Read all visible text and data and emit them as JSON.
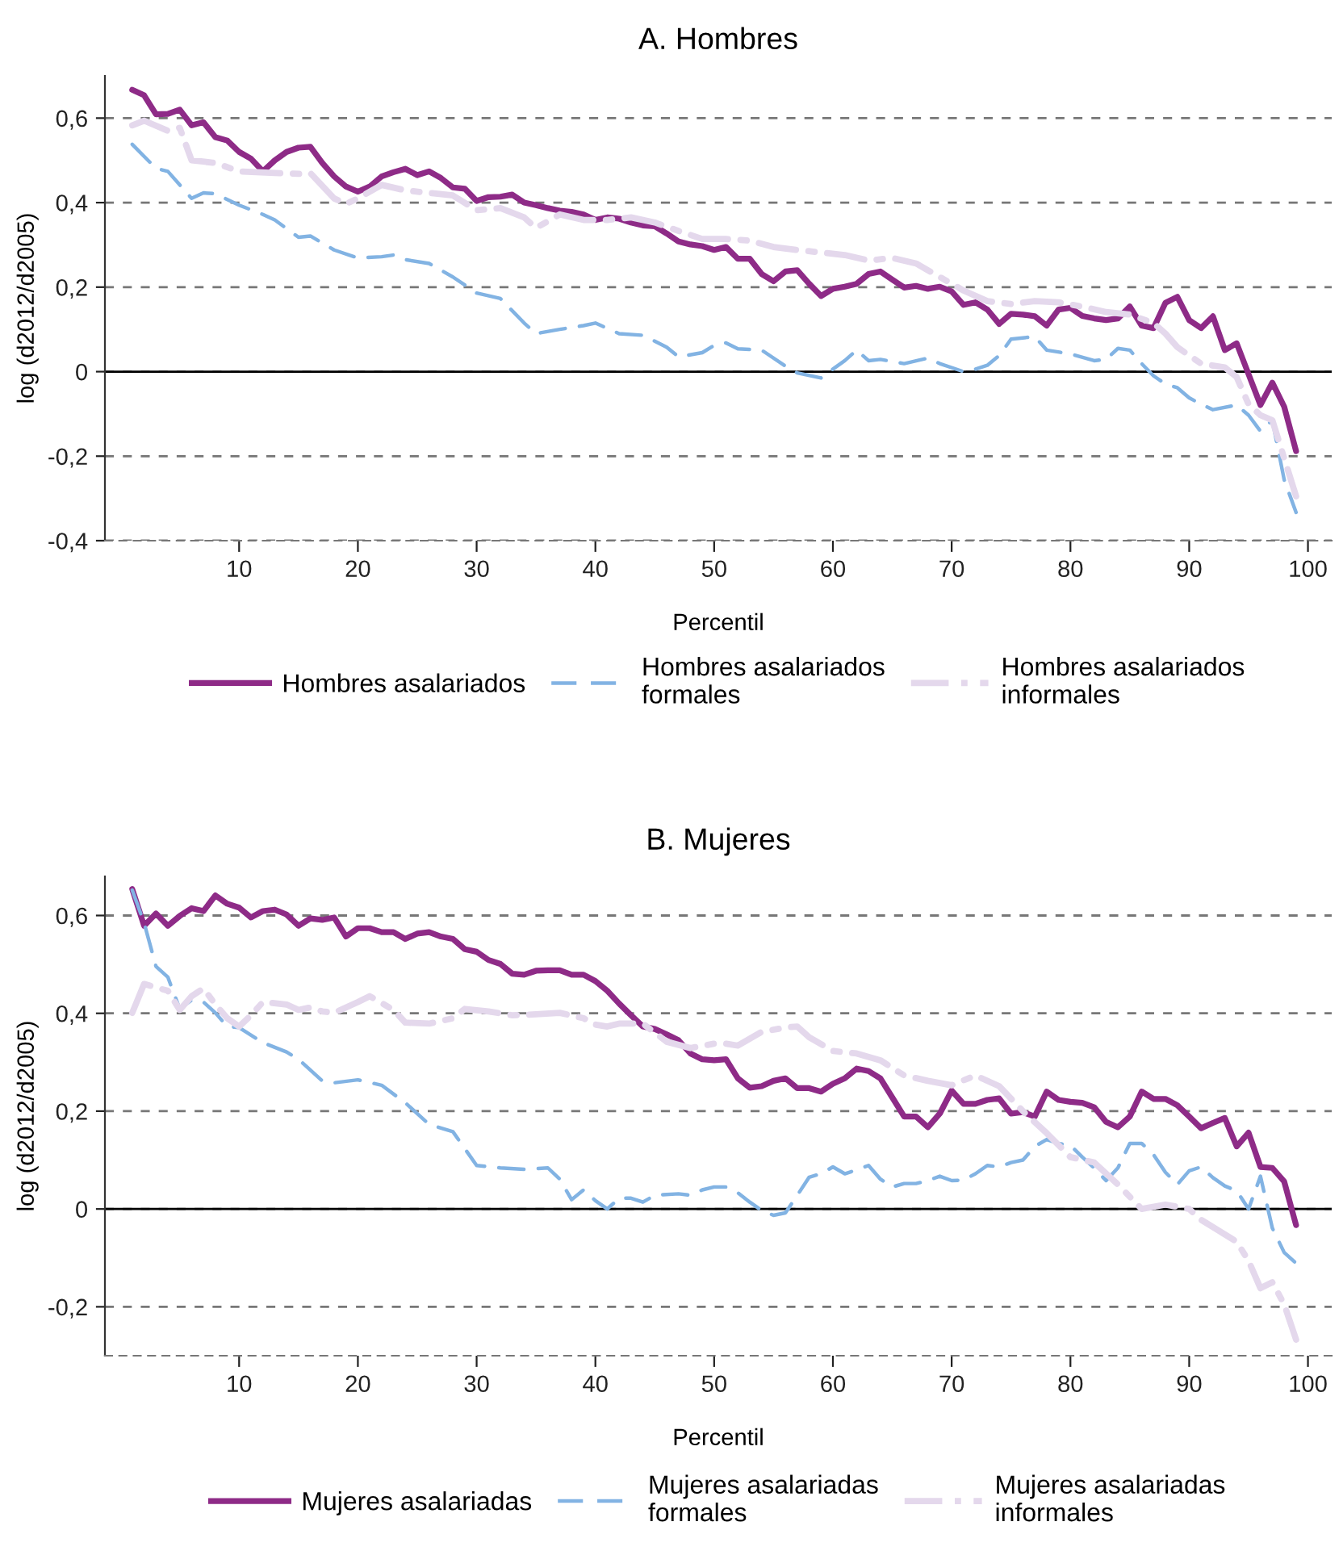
{
  "chart_data": [
    {
      "type": "line",
      "title": "A. Hombres",
      "xlabel": "Percentil",
      "ylabel": "log (d2012/d2005)",
      "xlim": [
        -1.3,
        102
      ],
      "xticks": [
        10,
        20,
        30,
        40,
        50,
        60,
        70,
        80,
        90,
        100
      ],
      "ylim": [
        -0.4,
        0.7
      ],
      "yticks": [
        {
          "value": -0.4,
          "label": "-0,4"
        },
        {
          "value": -0.2,
          "label": "-0,2"
        },
        {
          "value": 0,
          "label": "0"
        },
        {
          "value": 0.2,
          "label": "0,2"
        },
        {
          "value": 0.4,
          "label": "0,4"
        },
        {
          "value": 0.6,
          "label": "0,6"
        }
      ],
      "grid": "y",
      "legend": "bottom",
      "ref_lines": [
        {
          "axis": "y",
          "value": 0,
          "color": "#000000",
          "line_style": "solid"
        }
      ],
      "series": [
        {
          "name": "Hombres asalariados",
          "color": "#8e2b87",
          "line_style": "solid",
          "x": [
            1,
            2,
            3,
            4,
            5,
            6,
            7,
            8,
            9,
            10,
            11,
            12,
            13,
            14,
            15,
            16,
            17,
            18,
            19,
            20,
            21,
            22,
            23,
            24,
            25,
            26,
            27,
            28,
            29,
            30,
            31,
            32,
            33,
            34,
            35,
            36,
            37,
            38,
            39,
            40,
            41,
            42,
            43,
            44,
            45,
            46,
            47,
            48,
            49,
            50,
            51,
            52,
            53,
            54,
            55,
            56,
            57,
            58,
            59,
            60,
            61,
            62,
            63,
            64,
            65,
            66,
            67,
            68,
            69,
            70,
            71,
            72,
            73,
            74,
            75,
            76,
            77,
            78,
            79,
            80,
            81,
            82,
            83,
            84,
            85,
            86,
            87,
            88,
            89,
            90,
            91,
            92,
            93,
            94,
            95,
            96,
            97,
            98,
            99
          ],
          "values": [
            0.667,
            0.654,
            0.609,
            0.61,
            0.62,
            0.583,
            0.59,
            0.555,
            0.547,
            0.52,
            0.504,
            0.474,
            0.5,
            0.52,
            0.53,
            0.532,
            0.494,
            0.462,
            0.438,
            0.426,
            0.438,
            0.462,
            0.472,
            0.48,
            0.465,
            0.474,
            0.458,
            0.436,
            0.433,
            0.404,
            0.413,
            0.414,
            0.419,
            0.4,
            0.394,
            0.387,
            0.381,
            0.378,
            0.372,
            0.359,
            0.365,
            0.362,
            0.353,
            0.346,
            0.344,
            0.327,
            0.308,
            0.301,
            0.297,
            0.288,
            0.295,
            0.267,
            0.267,
            0.231,
            0.214,
            0.237,
            0.24,
            0.208,
            0.179,
            0.196,
            0.201,
            0.208,
            0.231,
            0.237,
            0.218,
            0.199,
            0.203,
            0.196,
            0.201,
            0.19,
            0.158,
            0.164,
            0.147,
            0.113,
            0.137,
            0.135,
            0.131,
            0.109,
            0.147,
            0.151,
            0.132,
            0.126,
            0.122,
            0.126,
            0.154,
            0.109,
            0.103,
            0.163,
            0.177,
            0.122,
            0.103,
            0.131,
            0.051,
            0.067,
            -0.006,
            -0.079,
            -0.026,
            -0.083,
            -0.188
          ]
        },
        {
          "name": "Hombres asalariados formales",
          "color": "#82b3e3",
          "line_style": "dashed",
          "x": [
            1,
            3,
            4,
            6,
            7,
            8,
            10,
            12,
            13,
            15,
            16,
            18,
            20,
            22,
            23,
            24,
            26,
            28,
            30,
            32,
            34,
            35,
            37,
            39,
            40,
            42,
            44,
            46,
            47,
            49,
            50,
            51,
            52,
            54,
            56,
            57,
            59,
            60,
            61,
            62,
            63,
            64,
            66,
            68,
            69,
            71,
            72,
            73,
            74,
            75,
            77,
            78,
            80,
            82,
            83,
            84,
            85,
            86,
            87,
            88,
            89,
            90,
            91,
            92,
            94,
            95,
            96,
            97,
            98,
            99
          ],
          "values": [
            0.538,
            0.481,
            0.474,
            0.41,
            0.423,
            0.421,
            0.394,
            0.372,
            0.359,
            0.318,
            0.321,
            0.288,
            0.269,
            0.272,
            0.276,
            0.265,
            0.256,
            0.224,
            0.186,
            0.173,
            0.115,
            0.09,
            0.1,
            0.109,
            0.115,
            0.09,
            0.086,
            0.058,
            0.035,
            0.045,
            0.062,
            0.068,
            0.054,
            0.051,
            0.013,
            -0.003,
            -0.015,
            0.006,
            0.026,
            0.051,
            0.026,
            0.029,
            0.019,
            0.032,
            0.019,
            0,
            0.006,
            0.015,
            0.038,
            0.077,
            0.083,
            0.051,
            0.042,
            0.026,
            0.029,
            0.055,
            0.051,
            0.019,
            -0.01,
            -0.029,
            -0.038,
            -0.062,
            -0.077,
            -0.09,
            -0.079,
            -0.103,
            -0.141,
            -0.115,
            -0.256,
            -0.333
          ]
        },
        {
          "name": "Hombres asalariados informales",
          "color": "#e4d8ec",
          "line_style": "dashed",
          "x": [
            1,
            2,
            4,
            5,
            6,
            8,
            10,
            13,
            15,
            16,
            18,
            19,
            20,
            22,
            24,
            26,
            28,
            30,
            32,
            34,
            35,
            37,
            39,
            41,
            43,
            45,
            47,
            49,
            50,
            51,
            53,
            55,
            57,
            59,
            61,
            63,
            65,
            67,
            69,
            71,
            73,
            75,
            77,
            79,
            81,
            83,
            85,
            87,
            88,
            89,
            91,
            93,
            94,
            95,
            96,
            97,
            98,
            99
          ],
          "values": [
            0.583,
            0.594,
            0.57,
            0.577,
            0.5,
            0.494,
            0.474,
            0.47,
            0.468,
            0.47,
            0.41,
            0.397,
            0.41,
            0.442,
            0.429,
            0.423,
            0.417,
            0.382,
            0.387,
            0.365,
            0.34,
            0.372,
            0.359,
            0.359,
            0.365,
            0.353,
            0.333,
            0.314,
            0.314,
            0.314,
            0.31,
            0.295,
            0.288,
            0.282,
            0.276,
            0.263,
            0.269,
            0.256,
            0.224,
            0.192,
            0.167,
            0.16,
            0.167,
            0.164,
            0.154,
            0.141,
            0.135,
            0.115,
            0.09,
            0.058,
            0.019,
            0.01,
            -0.013,
            -0.077,
            -0.103,
            -0.115,
            -0.205,
            -0.295
          ]
        }
      ]
    },
    {
      "type": "line",
      "title": "B. Mujeres",
      "xlabel": "Percentil",
      "ylabel": "log (d2012/d2005)",
      "xlim": [
        -1.3,
        102
      ],
      "xticks": [
        10,
        20,
        30,
        40,
        50,
        60,
        70,
        80,
        90,
        100
      ],
      "ylim": [
        -0.3,
        0.68
      ],
      "yticks": [
        {
          "value": -0.2,
          "label": "-0,2"
        },
        {
          "value": 0,
          "label": "0"
        },
        {
          "value": 0.2,
          "label": "0,2"
        },
        {
          "value": 0.4,
          "label": "0,4"
        },
        {
          "value": 0.6,
          "label": "0,6"
        }
      ],
      "grid": "y",
      "legend": "bottom",
      "ref_lines": [
        {
          "axis": "y",
          "value": 0,
          "color": "#000000",
          "line_style": "solid"
        }
      ],
      "series": [
        {
          "name": "Mujeres asalariadas",
          "color": "#8e2b87",
          "line_style": "solid",
          "x": [
            1,
            2,
            3,
            4,
            5,
            6,
            7,
            8,
            9,
            10,
            11,
            12,
            13,
            14,
            15,
            16,
            17,
            18,
            19,
            20,
            21,
            22,
            23,
            24,
            25,
            26,
            27,
            28,
            29,
            30,
            31,
            32,
            33,
            34,
            35,
            36,
            37,
            38,
            39,
            40,
            41,
            42,
            43,
            44,
            45,
            46,
            47,
            48,
            49,
            50,
            51,
            52,
            53,
            54,
            55,
            56,
            57,
            58,
            59,
            60,
            61,
            62,
            63,
            64,
            65,
            66,
            67,
            68,
            69,
            70,
            71,
            72,
            73,
            74,
            75,
            76,
            77,
            78,
            79,
            80,
            81,
            82,
            83,
            84,
            85,
            86,
            87,
            88,
            89,
            90,
            91,
            92,
            93,
            94,
            95,
            96,
            97,
            98,
            99
          ],
          "values": [
            0.654,
            0.579,
            0.604,
            0.579,
            0.599,
            0.615,
            0.609,
            0.641,
            0.624,
            0.616,
            0.596,
            0.609,
            0.612,
            0.602,
            0.579,
            0.594,
            0.591,
            0.596,
            0.557,
            0.574,
            0.574,
            0.566,
            0.566,
            0.552,
            0.563,
            0.566,
            0.557,
            0.552,
            0.531,
            0.526,
            0.509,
            0.501,
            0.481,
            0.479,
            0.487,
            0.488,
            0.488,
            0.479,
            0.479,
            0.466,
            0.446,
            0.42,
            0.396,
            0.373,
            0.368,
            0.357,
            0.345,
            0.318,
            0.306,
            0.304,
            0.306,
            0.267,
            0.248,
            0.251,
            0.262,
            0.267,
            0.247,
            0.247,
            0.24,
            0.256,
            0.267,
            0.287,
            0.282,
            0.267,
            0.228,
            0.189,
            0.189,
            0.167,
            0.195,
            0.242,
            0.215,
            0.215,
            0.223,
            0.226,
            0.195,
            0.198,
            0.189,
            0.24,
            0.223,
            0.219,
            0.217,
            0.208,
            0.178,
            0.167,
            0.189,
            0.24,
            0.225,
            0.225,
            0.212,
            0.189,
            0.165,
            0.176,
            0.186,
            0.128,
            0.156,
            0.086,
            0.084,
            0.056,
            -0.033
          ]
        },
        {
          "name": "Mujeres asalariadas formales",
          "color": "#82b3e3",
          "line_style": "dashed",
          "x": [
            1,
            2,
            3,
            4,
            5,
            6,
            7,
            8,
            9,
            10,
            12,
            14,
            15,
            17,
            18,
            20,
            22,
            24,
            26,
            28,
            30,
            32,
            34,
            36,
            37,
            38,
            39,
            40,
            41,
            42,
            43,
            44,
            45,
            47,
            48,
            49,
            50,
            51,
            52,
            53,
            54,
            55,
            56,
            57,
            58,
            59,
            60,
            61,
            62,
            63,
            64,
            65,
            66,
            67,
            68,
            69,
            70,
            71,
            72,
            73,
            74,
            75,
            76,
            77,
            78,
            79,
            80,
            81,
            82,
            83,
            84,
            85,
            86,
            87,
            88,
            89,
            90,
            91,
            92,
            93,
            94,
            95,
            96,
            97,
            98,
            99
          ],
          "values": [
            0.652,
            0.585,
            0.496,
            0.474,
            0.409,
            0.427,
            0.423,
            0.401,
            0.373,
            0.371,
            0.34,
            0.321,
            0.306,
            0.262,
            0.258,
            0.264,
            0.253,
            0.217,
            0.173,
            0.158,
            0.089,
            0.084,
            0.081,
            0.084,
            0.061,
            0.019,
            0.039,
            0.017,
            0,
            0.022,
            0.022,
            0.014,
            0.028,
            0.031,
            0.028,
            0.039,
            0.045,
            0.045,
            0.033,
            0.014,
            -0.003,
            -0.013,
            -0.008,
            0.028,
            0.065,
            0.072,
            0.086,
            0.072,
            0.08,
            0.089,
            0.061,
            0.045,
            0.052,
            0.052,
            0.058,
            0.067,
            0.058,
            0.059,
            0.072,
            0.089,
            0.086,
            0.095,
            0.1,
            0.128,
            0.142,
            0.134,
            0.13,
            0.106,
            0.084,
            0.058,
            0.084,
            0.134,
            0.134,
            0.111,
            0.075,
            0.05,
            0.078,
            0.086,
            0.064,
            0.047,
            0.037,
            0,
            0.067,
            -0.039,
            -0.089,
            -0.111
          ]
        },
        {
          "name": "Mujeres asalariadas informales",
          "color": "#e4d8ec",
          "line_style": "dashed",
          "x": [
            1,
            2,
            4,
            5,
            6,
            7,
            8,
            9,
            10,
            11,
            12,
            14,
            15,
            16,
            17,
            18,
            20,
            21,
            23,
            24,
            26,
            28,
            29,
            31,
            33,
            35,
            37,
            39,
            40,
            41,
            42,
            44,
            46,
            48,
            50,
            51,
            52,
            54,
            56,
            57,
            58,
            60,
            62,
            64,
            66,
            68,
            70,
            72,
            74,
            76,
            78,
            80,
            82,
            84,
            86,
            88,
            90,
            91,
            94,
            95,
            96,
            97,
            98,
            99
          ],
          "values": [
            0.401,
            0.46,
            0.446,
            0.407,
            0.435,
            0.451,
            0.418,
            0.39,
            0.373,
            0.396,
            0.423,
            0.418,
            0.407,
            0.412,
            0.404,
            0.401,
            0.423,
            0.435,
            0.407,
            0.381,
            0.379,
            0.39,
            0.409,
            0.404,
            0.396,
            0.398,
            0.401,
            0.39,
            0.377,
            0.373,
            0.379,
            0.379,
            0.342,
            0.329,
            0.338,
            0.338,
            0.334,
            0.362,
            0.371,
            0.373,
            0.351,
            0.323,
            0.318,
            0.304,
            0.273,
            0.262,
            0.253,
            0.273,
            0.251,
            0.2,
            0.155,
            0.106,
            0.095,
            0.05,
            0,
            0.009,
            0,
            -0.022,
            -0.067,
            -0.106,
            -0.162,
            -0.15,
            -0.195,
            -0.267
          ]
        }
      ]
    }
  ]
}
